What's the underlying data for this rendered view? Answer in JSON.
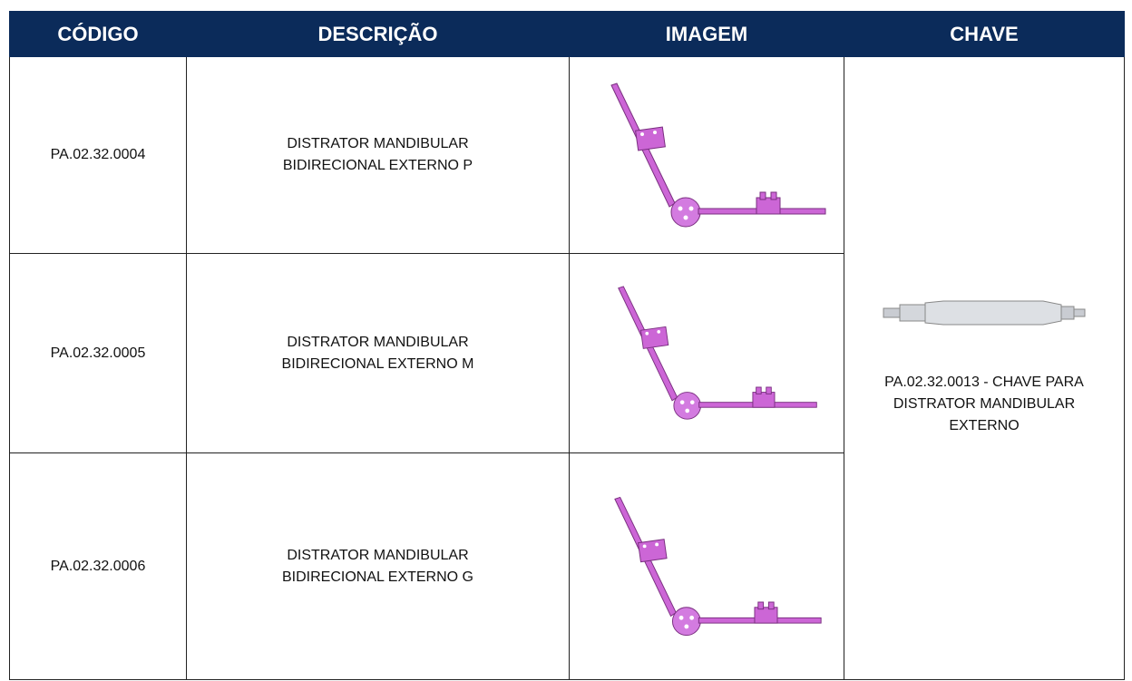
{
  "table": {
    "header": [
      "CÓDIGO",
      "DESCRIÇÃO",
      "IMAGEM",
      "CHAVE"
    ],
    "rows": [
      {
        "code": "PA.02.32.0004",
        "description": [
          "DISTRATOR MANDIBULAR",
          "BIDIRECIONAL EXTERNO P"
        ]
      },
      {
        "code": "PA.02.32.0005",
        "description": [
          "DISTRATOR MANDIBULAR",
          "BIDIRECIONAL EXTERNO M"
        ]
      },
      {
        "code": "PA.02.32.0006",
        "description": [
          "DISTRATOR MANDIBULAR",
          "BIDIRECIONAL EXTERNO G"
        ]
      }
    ],
    "key": [
      "PA.02.32.0013 - CHAVE PARA",
      "DISTRATOR MANDIBULAR",
      "EXTERNO"
    ]
  }
}
